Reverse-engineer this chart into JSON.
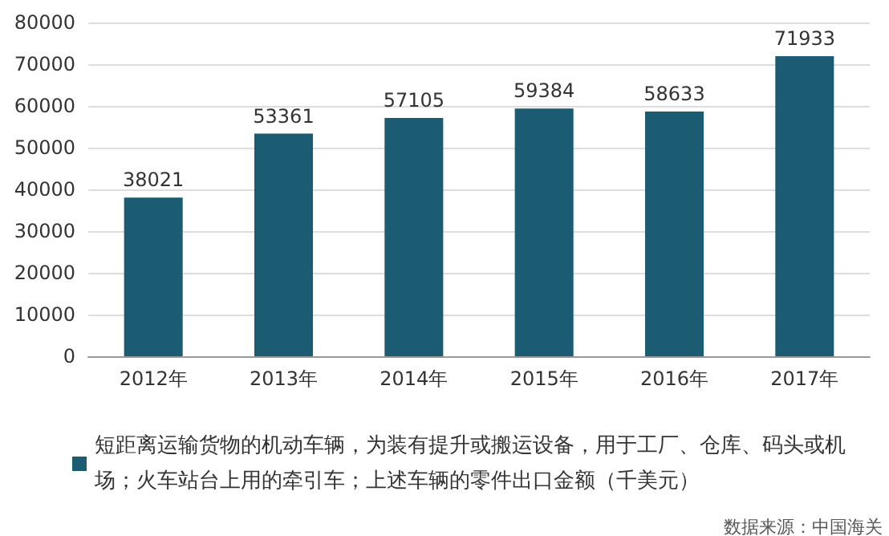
{
  "chart_data": {
    "type": "bar",
    "categories": [
      "2012年",
      "2013年",
      "2014年",
      "2015年",
      "2016年",
      "2017年"
    ],
    "series": [
      {
        "name": "短距离运输货物的机动车辆，为装有提升或搬运设备，用于工厂、仓库、码头或机场；火车站台上用的牵引车；上述车辆的零件出口金额（千美元）",
        "color": "#1b5c73",
        "values": [
          38021,
          53361,
          57105,
          59384,
          58633,
          71933
        ]
      }
    ],
    "ylim": [
      0,
      80000
    ],
    "yticks": [
      0,
      10000,
      20000,
      30000,
      40000,
      50000,
      60000,
      70000,
      80000
    ],
    "grid": "y",
    "legend": "bottom",
    "data_labels": true,
    "annotations": [
      "数据来源：中国海关"
    ]
  }
}
